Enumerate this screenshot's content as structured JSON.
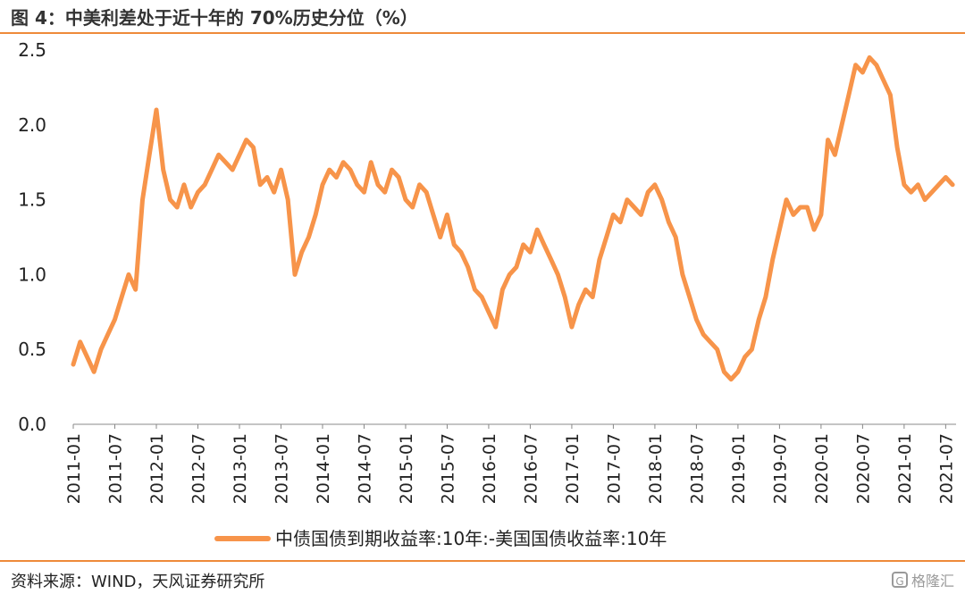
{
  "header": {
    "title": "图 4：中美利差处于近十年的 70%历史分位（%）"
  },
  "footer": {
    "source": "资料来源：WIND，天风证券研究所",
    "watermark": "格隆汇"
  },
  "chart_data": {
    "type": "line",
    "title": "",
    "xlabel": "",
    "ylabel": "",
    "ylim": [
      0.0,
      2.5
    ],
    "yticks": [
      "0.0",
      "0.5",
      "1.0",
      "1.5",
      "2.0",
      "2.5"
    ],
    "xticks": [
      "2011-01",
      "2011-07",
      "2012-01",
      "2012-07",
      "2013-01",
      "2013-07",
      "2014-01",
      "2014-07",
      "2015-01",
      "2015-07",
      "2016-01",
      "2016-07",
      "2017-01",
      "2017-07",
      "2018-01",
      "2018-07",
      "2019-01",
      "2019-07",
      "2020-01",
      "2020-07",
      "2021-01",
      "2021-07"
    ],
    "grid": false,
    "legend_position": "bottom",
    "line_color": "#f7944a",
    "series": [
      {
        "name": "中债国债到期收益率:10年:-美国国债收益率:10年",
        "x": [
          "2011-01",
          "2011-02",
          "2011-03",
          "2011-04",
          "2011-05",
          "2011-06",
          "2011-07",
          "2011-08",
          "2011-09",
          "2011-10",
          "2011-11",
          "2011-12",
          "2012-01",
          "2012-02",
          "2012-03",
          "2012-04",
          "2012-05",
          "2012-06",
          "2012-07",
          "2012-08",
          "2012-09",
          "2012-10",
          "2012-11",
          "2012-12",
          "2013-01",
          "2013-02",
          "2013-03",
          "2013-04",
          "2013-05",
          "2013-06",
          "2013-07",
          "2013-08",
          "2013-09",
          "2013-10",
          "2013-11",
          "2013-12",
          "2014-01",
          "2014-02",
          "2014-03",
          "2014-04",
          "2014-05",
          "2014-06",
          "2014-07",
          "2014-08",
          "2014-09",
          "2014-10",
          "2014-11",
          "2014-12",
          "2015-01",
          "2015-02",
          "2015-03",
          "2015-04",
          "2015-05",
          "2015-06",
          "2015-07",
          "2015-08",
          "2015-09",
          "2015-10",
          "2015-11",
          "2015-12",
          "2016-01",
          "2016-02",
          "2016-03",
          "2016-04",
          "2016-05",
          "2016-06",
          "2016-07",
          "2016-08",
          "2016-09",
          "2016-10",
          "2016-11",
          "2016-12",
          "2017-01",
          "2017-02",
          "2017-03",
          "2017-04",
          "2017-05",
          "2017-06",
          "2017-07",
          "2017-08",
          "2017-09",
          "2017-10",
          "2017-11",
          "2017-12",
          "2018-01",
          "2018-02",
          "2018-03",
          "2018-04",
          "2018-05",
          "2018-06",
          "2018-07",
          "2018-08",
          "2018-09",
          "2018-10",
          "2018-11",
          "2018-12",
          "2019-01",
          "2019-02",
          "2019-03",
          "2019-04",
          "2019-05",
          "2019-06",
          "2019-07",
          "2019-08",
          "2019-09",
          "2019-10",
          "2019-11",
          "2019-12",
          "2020-01",
          "2020-02",
          "2020-03",
          "2020-04",
          "2020-05",
          "2020-06",
          "2020-07",
          "2020-08",
          "2020-09",
          "2020-10",
          "2020-11",
          "2020-12",
          "2021-01",
          "2021-02",
          "2021-03",
          "2021-04",
          "2021-05",
          "2021-06",
          "2021-07",
          "2021-08"
        ],
        "values": [
          0.4,
          0.55,
          0.45,
          0.35,
          0.5,
          0.6,
          0.7,
          0.85,
          1.0,
          0.9,
          1.5,
          1.8,
          2.1,
          1.7,
          1.5,
          1.45,
          1.6,
          1.45,
          1.55,
          1.6,
          1.7,
          1.8,
          1.75,
          1.7,
          1.8,
          1.9,
          1.85,
          1.6,
          1.65,
          1.55,
          1.7,
          1.5,
          1.0,
          1.15,
          1.25,
          1.4,
          1.6,
          1.7,
          1.65,
          1.75,
          1.7,
          1.6,
          1.55,
          1.75,
          1.6,
          1.55,
          1.7,
          1.65,
          1.5,
          1.45,
          1.6,
          1.55,
          1.4,
          1.25,
          1.4,
          1.2,
          1.15,
          1.05,
          0.9,
          0.85,
          0.75,
          0.65,
          0.9,
          1.0,
          1.05,
          1.2,
          1.15,
          1.3,
          1.2,
          1.1,
          1.0,
          0.85,
          0.65,
          0.8,
          0.9,
          0.85,
          1.1,
          1.25,
          1.4,
          1.35,
          1.5,
          1.45,
          1.4,
          1.55,
          1.6,
          1.5,
          1.35,
          1.25,
          1.0,
          0.85,
          0.7,
          0.6,
          0.55,
          0.5,
          0.35,
          0.3,
          0.35,
          0.45,
          0.5,
          0.7,
          0.85,
          1.1,
          1.3,
          1.5,
          1.4,
          1.45,
          1.45,
          1.3,
          1.4,
          1.9,
          1.8,
          2.0,
          2.2,
          2.4,
          2.35,
          2.45,
          2.4,
          2.3,
          2.2,
          1.85,
          1.6,
          1.55,
          1.6,
          1.5,
          1.55,
          1.6,
          1.65,
          1.6
        ]
      }
    ]
  }
}
